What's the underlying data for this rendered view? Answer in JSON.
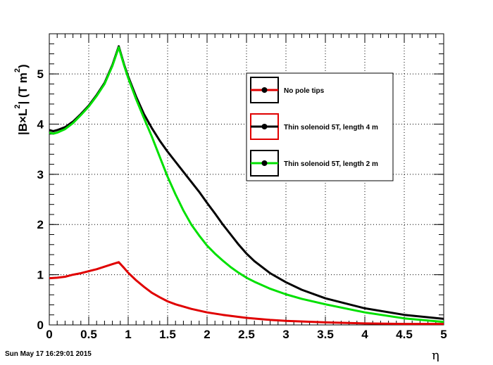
{
  "timestamp": "Sun May 17 16:29:01 2015",
  "chart_data": {
    "type": "line",
    "xlabel": "η",
    "ylabel": {
      "prefix": "|B",
      "times": "×",
      "mid": "L",
      "sup1": "2",
      "suffix": "| (T m",
      "sup2": "2",
      "end": ")"
    },
    "xlim": [
      0,
      5
    ],
    "ylim": [
      0,
      5.8
    ],
    "xticks": [
      0,
      0.5,
      1,
      1.5,
      2,
      2.5,
      3,
      3.5,
      4,
      4.5,
      5
    ],
    "xtick_labels": [
      "0",
      "0.5",
      "1",
      "1.5",
      "2",
      "2.5",
      "3",
      "3.5",
      "4",
      "4.5",
      "5"
    ],
    "yticks": [
      0,
      1,
      2,
      3,
      4,
      5
    ],
    "ytick_labels": [
      "0",
      "1",
      "2",
      "3",
      "4",
      "5"
    ],
    "grid": true,
    "legend_position": "top-right",
    "series": [
      {
        "name": "No pole tips",
        "color": "#e00000",
        "x": [
          0,
          0.1,
          0.2,
          0.3,
          0.4,
          0.5,
          0.6,
          0.7,
          0.8,
          0.88,
          0.95,
          1.0,
          1.1,
          1.2,
          1.3,
          1.4,
          1.5,
          1.6,
          1.8,
          2.0,
          2.2,
          2.5,
          2.8,
          3.0,
          3.5,
          4.0,
          4.5,
          5.0
        ],
        "y": [
          0.93,
          0.94,
          0.96,
          1.0,
          1.03,
          1.07,
          1.11,
          1.16,
          1.21,
          1.25,
          1.13,
          1.04,
          0.89,
          0.76,
          0.64,
          0.55,
          0.47,
          0.41,
          0.32,
          0.25,
          0.2,
          0.14,
          0.1,
          0.08,
          0.05,
          0.03,
          0.02,
          0.02
        ]
      },
      {
        "name": "Thin solenoid 5T, length 4 m",
        "color": "#000000",
        "x": [
          0,
          0.05,
          0.1,
          0.2,
          0.3,
          0.4,
          0.5,
          0.6,
          0.7,
          0.8,
          0.88,
          0.95,
          1.0,
          1.1,
          1.2,
          1.3,
          1.4,
          1.5,
          1.6,
          1.7,
          1.8,
          1.9,
          2.0,
          2.1,
          2.2,
          2.3,
          2.4,
          2.5,
          2.6,
          2.8,
          3.0,
          3.2,
          3.5,
          4.0,
          4.5,
          5.0
        ],
        "y": [
          3.88,
          3.86,
          3.88,
          3.94,
          4.05,
          4.2,
          4.37,
          4.58,
          4.82,
          5.18,
          5.55,
          5.18,
          4.95,
          4.55,
          4.2,
          3.92,
          3.67,
          3.45,
          3.25,
          3.05,
          2.85,
          2.65,
          2.43,
          2.22,
          2.0,
          1.8,
          1.6,
          1.42,
          1.27,
          1.03,
          0.85,
          0.7,
          0.53,
          0.33,
          0.2,
          0.12
        ]
      },
      {
        "name": "Thin solenoid 5T, length 2 m",
        "color": "#00e000",
        "x": [
          0,
          0.05,
          0.1,
          0.2,
          0.3,
          0.4,
          0.5,
          0.6,
          0.7,
          0.8,
          0.88,
          0.95,
          1.0,
          1.1,
          1.2,
          1.3,
          1.4,
          1.5,
          1.6,
          1.7,
          1.8,
          1.9,
          2.0,
          2.1,
          2.2,
          2.3,
          2.4,
          2.5,
          2.6,
          2.8,
          3.0,
          3.2,
          3.5,
          4.0,
          4.5,
          5.0
        ],
        "y": [
          3.83,
          3.81,
          3.83,
          3.9,
          4.02,
          4.18,
          4.35,
          4.56,
          4.8,
          5.16,
          5.53,
          5.16,
          4.92,
          4.5,
          4.12,
          3.75,
          3.35,
          2.95,
          2.6,
          2.28,
          2.0,
          1.78,
          1.58,
          1.42,
          1.28,
          1.15,
          1.04,
          0.94,
          0.86,
          0.72,
          0.61,
          0.52,
          0.41,
          0.25,
          0.13,
          0.06
        ]
      }
    ]
  }
}
